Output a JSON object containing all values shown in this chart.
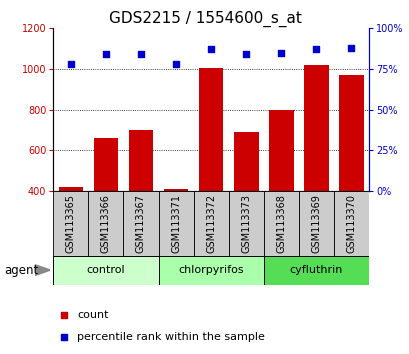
{
  "title": "GDS2215 / 1554600_s_at",
  "samples": [
    "GSM113365",
    "GSM113366",
    "GSM113367",
    "GSM113371",
    "GSM113372",
    "GSM113373",
    "GSM113368",
    "GSM113369",
    "GSM113370"
  ],
  "counts": [
    420,
    660,
    700,
    410,
    1005,
    690,
    800,
    1020,
    970
  ],
  "percentiles": [
    78,
    84,
    84,
    78,
    87,
    84,
    85,
    87,
    88
  ],
  "groups": [
    {
      "label": "control",
      "indices": [
        0,
        1,
        2
      ],
      "color": "#ccffcc"
    },
    {
      "label": "chlorpyrifos",
      "indices": [
        3,
        4,
        5
      ],
      "color": "#aaffaa"
    },
    {
      "label": "cyfluthrin",
      "indices": [
        6,
        7,
        8
      ],
      "color": "#55dd55"
    }
  ],
  "bar_color": "#cc0000",
  "dot_color": "#0000cc",
  "left_ylim": [
    400,
    1200
  ],
  "left_yticks": [
    400,
    600,
    800,
    1000,
    1200
  ],
  "right_ylim": [
    0,
    100
  ],
  "right_yticks": [
    0,
    25,
    50,
    75,
    100
  ],
  "right_yticklabels": [
    "0%",
    "25%",
    "50%",
    "75%",
    "100%"
  ],
  "title_fontsize": 11,
  "tick_label_fontsize": 7,
  "axis_label_color_left": "#cc0000",
  "axis_label_color_right": "#0000cc",
  "group_label_fontsize": 8,
  "sample_label_fontsize": 7,
  "agent_label": "agent",
  "legend_count_label": "count",
  "legend_percentile_label": "percentile rank within the sample",
  "legend_fontsize": 8,
  "gray_box_color": "#cccccc",
  "dotted_yticks": [
    600,
    800,
    1000
  ]
}
